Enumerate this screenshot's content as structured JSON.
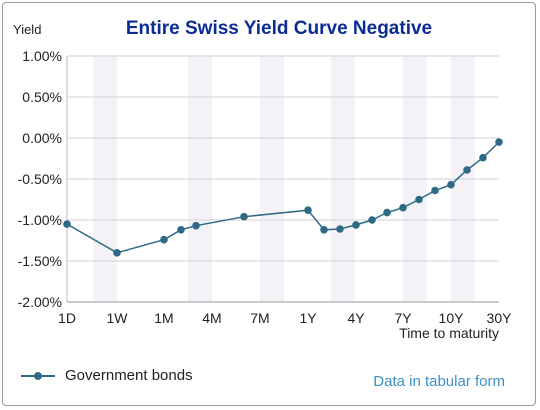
{
  "chart_data": {
    "type": "line",
    "title": "Entire Swiss Yield Curve Negative",
    "ylabel": "Yield",
    "xlabel": "Time to maturity",
    "ylim": [
      -2.0,
      1.0
    ],
    "yticks": [
      "1.00%",
      "0.50%",
      "0.00%",
      "-0.50%",
      "-1.00%",
      "-1.50%",
      "-2.00%"
    ],
    "ytick_values": [
      1.0,
      0.5,
      0.0,
      -0.5,
      -1.0,
      -1.5,
      -2.0
    ],
    "x_tick_labels": [
      "1D",
      "1W",
      "1M",
      "4M",
      "7M",
      "1Y",
      "4Y",
      "7Y",
      "10Y",
      "30Y"
    ],
    "grid": true,
    "legend_position": "bottom-left",
    "series": [
      {
        "name": "Government bonds",
        "x": [
          "1D",
          "1W",
          "1M",
          "2M",
          "3M",
          "6M",
          "1Y",
          "2Y",
          "3Y",
          "4Y",
          "5Y",
          "6Y",
          "7Y",
          "8Y",
          "9Y",
          "10Y",
          "15Y",
          "20Y",
          "30Y"
        ],
        "values": [
          -1.05,
          -1.4,
          -1.24,
          -1.12,
          -1.07,
          -0.96,
          -0.88,
          -1.12,
          -1.11,
          -1.06,
          -1.0,
          -0.91,
          -0.85,
          -0.75,
          -0.64,
          -0.57,
          -0.39,
          -0.24,
          -0.05
        ]
      }
    ]
  },
  "legend": {
    "label": "Government bonds"
  },
  "link": {
    "label": "Data in tabular form"
  },
  "colors": {
    "title": "#0b2c94",
    "series": "#2e6a86",
    "link": "#3f8fc7",
    "band": "#f4f2f7",
    "grid": "#d2d2d2"
  }
}
